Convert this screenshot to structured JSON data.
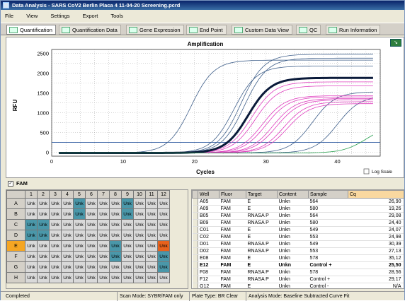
{
  "window": {
    "title": "Data Analysis - SARS CoV2 Berlin Placa 4 11-04-20 Screening.pcrd"
  },
  "menu": [
    "File",
    "View",
    "Settings",
    "Export",
    "Tools"
  ],
  "tabs": [
    "Quantification",
    "Quantification Data",
    "Gene Expression",
    "End Point",
    "Custom Data View",
    "QC",
    "Run Information"
  ],
  "chart": {
    "log_scale_label": "Log Scale"
  },
  "chart_data": {
    "type": "line",
    "title": "Amplification",
    "xlabel": "Cycles",
    "ylabel": "RFU",
    "xlim": [
      0,
      46
    ],
    "ylim": [
      -100,
      2600
    ],
    "xticks": [
      0,
      10,
      20,
      30,
      40
    ],
    "yticks": [
      0,
      500,
      1000,
      1500,
      2000,
      2500
    ],
    "threshold": 250,
    "grid": true,
    "series": [
      {
        "color": "#3f5f8a",
        "midpoint": 19.5,
        "plateau": 2350,
        "width": 0.8
      },
      {
        "color": "#3f5f8a",
        "midpoint": 25.5,
        "plateau": 2200,
        "width": 0.8
      },
      {
        "color": "#3f5f8a",
        "midpoint": 26.5,
        "plateau": 2500,
        "width": 0.8
      },
      {
        "color": "#3f5f8a",
        "midpoint": 27.0,
        "plateau": 2400,
        "width": 0.8
      },
      {
        "color": "#3f5f8a",
        "midpoint": 36.5,
        "plateau": 1550,
        "width": 0.8
      },
      {
        "color": "#3f5f8a",
        "midpoint": 40.0,
        "plateau": 1450,
        "width": 0.8
      },
      {
        "color": "#e040c0",
        "midpoint": 28.0,
        "plateau": 1800,
        "width": 0.8
      },
      {
        "color": "#e040c0",
        "midpoint": 28.5,
        "plateau": 1700,
        "width": 0.8
      },
      {
        "color": "#e040c0",
        "midpoint": 29.5,
        "plateau": 1450,
        "width": 0.8
      },
      {
        "color": "#e040c0",
        "midpoint": 30.0,
        "plateau": 1420,
        "width": 0.8
      },
      {
        "color": "#e040c0",
        "midpoint": 31.0,
        "plateau": 1380,
        "width": 0.8
      },
      {
        "color": "#e040c0",
        "midpoint": 31.5,
        "plateau": 1350,
        "width": 0.8
      },
      {
        "color": "#e040c0",
        "midpoint": 32.5,
        "plateau": 1300,
        "width": 0.8
      },
      {
        "color": "#e040c0",
        "midpoint": 33.0,
        "plateau": 1250,
        "width": 0.8
      },
      {
        "color": "#0a1a3a",
        "midpoint": 27.5,
        "plateau": 1900,
        "width": 3
      },
      {
        "color": "#2aa050",
        "midpoint": 44.0,
        "plateau": 700,
        "width": 0.8
      }
    ]
  },
  "filter": {
    "fluor_label": "FAM"
  },
  "plate": {
    "columns": [
      "1",
      "2",
      "3",
      "4",
      "5",
      "6",
      "7",
      "8",
      "9",
      "10",
      "11",
      "12"
    ],
    "rows": [
      "A",
      "B",
      "C",
      "D",
      "E",
      "F",
      "G",
      "H"
    ],
    "cell_label": "Unk",
    "selected_row": "E",
    "selected_cells": [
      "A5",
      "A9",
      "B5",
      "B9",
      "C1",
      "C2",
      "D1",
      "D2",
      "E8",
      "E12",
      "F8",
      "F12",
      "G12"
    ],
    "highlight_cell": "E12"
  },
  "grid": {
    "headers": [
      "Well",
      "Fluor",
      "Target",
      "Content",
      "Sample",
      "Cq"
    ],
    "rows": [
      {
        "well": "A05",
        "fluor": "FAM",
        "target": "E",
        "content": "Unkn",
        "sample": "564",
        "cq": "26,90"
      },
      {
        "well": "A09",
        "fluor": "FAM",
        "target": "E",
        "content": "Unkn",
        "sample": "580",
        "cq": "19,26"
      },
      {
        "well": "B05",
        "fluor": "FAM",
        "target": "RNASA P",
        "content": "Unkn",
        "sample": "564",
        "cq": "29,08"
      },
      {
        "well": "B09",
        "fluor": "FAM",
        "target": "RNASA P",
        "content": "Unkn",
        "sample": "580",
        "cq": "24,40"
      },
      {
        "well": "C01",
        "fluor": "FAM",
        "target": "E",
        "content": "Unkn",
        "sample": "549",
        "cq": "24,07"
      },
      {
        "well": "C02",
        "fluor": "FAM",
        "target": "E",
        "content": "Unkn",
        "sample": "553",
        "cq": "24,98"
      },
      {
        "well": "D01",
        "fluor": "FAM",
        "target": "RNASA P",
        "content": "Unkn",
        "sample": "549",
        "cq": "30,39"
      },
      {
        "well": "D02",
        "fluor": "FAM",
        "target": "RNASA P",
        "content": "Unkn",
        "sample": "553",
        "cq": "27,13"
      },
      {
        "well": "E08",
        "fluor": "FAM",
        "target": "E",
        "content": "Unkn",
        "sample": "578",
        "cq": "35,12"
      },
      {
        "well": "E12",
        "fluor": "FAM",
        "target": "E",
        "content": "Unkn",
        "sample": "Control +",
        "cq": "25,50",
        "bold": true
      },
      {
        "well": "F08",
        "fluor": "FAM",
        "target": "RNASA P",
        "content": "Unkn",
        "sample": "578",
        "cq": "28,56"
      },
      {
        "well": "F12",
        "fluor": "FAM",
        "target": "RNASA P",
        "content": "Unkn",
        "sample": "Control +",
        "cq": "29,17"
      },
      {
        "well": "G12",
        "fluor": "FAM",
        "target": "E",
        "content": "Unkn",
        "sample": "Control -",
        "cq": "N/A"
      }
    ]
  },
  "status": {
    "state": "Completed",
    "scan_mode": "Scan Mode: SYBR/FAM only",
    "plate_type": "Plate Type: BR Clear",
    "analysis_mode": "Analysis Mode: Baseline Subtracted Curve Fit"
  }
}
